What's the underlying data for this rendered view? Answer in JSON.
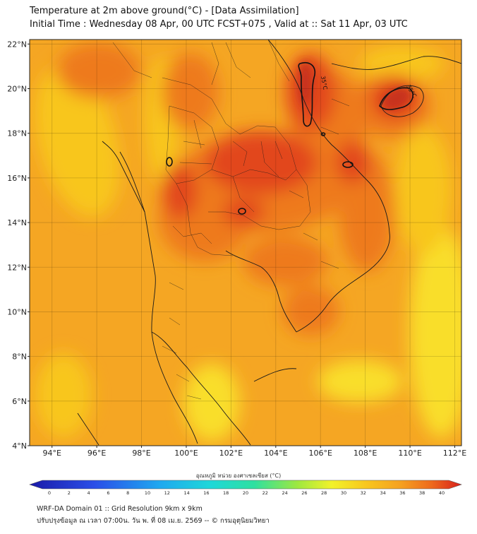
{
  "header": {
    "title_line1": "Temperature at 2m above ground(°C) - [Data Assimilation]",
    "title_line2": "Initial Time : Wednesday 08 Apr, 00 UTC FCST+075 , Valid at :: Sat 11 Apr, 03 UTC"
  },
  "map": {
    "lat_labels": [
      "22°N",
      "20°N",
      "18°N",
      "16°N",
      "14°N",
      "12°N",
      "10°N",
      "8°N",
      "6°N",
      "4°N"
    ],
    "lon_labels": [
      "94°E",
      "96°E",
      "98°E",
      "100°E",
      "102°E",
      "104°E",
      "106°E",
      "108°E",
      "110°E",
      "112°E"
    ],
    "lat_range": [
      4,
      22.2
    ],
    "lon_range": [
      93,
      112.3
    ],
    "contour_label": "35°C",
    "colors": {
      "base": "#f5a623",
      "warm": "#ee7a1c",
      "hot": "#e2471a",
      "hottest": "#c7321b",
      "cool": "#f8c61e",
      "coolest": "#f9de2a",
      "border": "#1a1a1a"
    }
  },
  "colorbar": {
    "title": "อุณหภูมิ หน่วย องศาเซลเซียส (°C)",
    "ticks": [
      "0",
      "2",
      "4",
      "6",
      "8",
      "10",
      "12",
      "14",
      "16",
      "18",
      "20",
      "22",
      "24",
      "26",
      "28",
      "30",
      "32",
      "34",
      "36",
      "38",
      "40"
    ]
  },
  "footer": {
    "line1": "WRF-DA Domain 01 :: Grid Resolution 9km x 9km",
    "line2": "ปรับปรุงข้อมูล ณ เวลา 07:00น. วัน พ. ที่ 08 เม.ย. 2569 -- © กรมอุตุนิยมวิทยา"
  }
}
